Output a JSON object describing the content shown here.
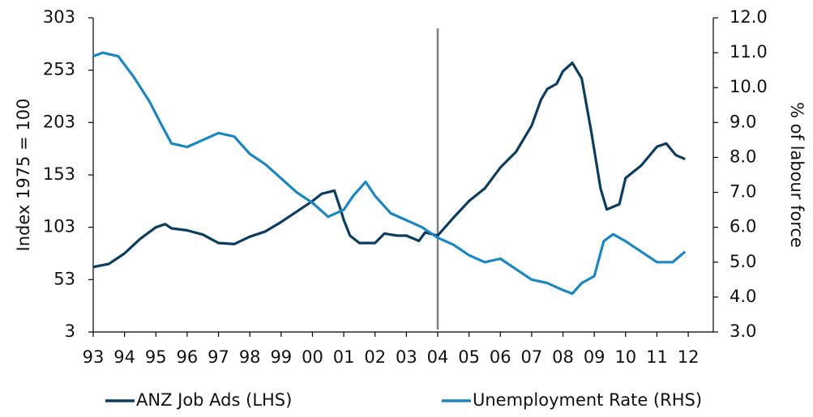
{
  "chart_data": {
    "type": "line",
    "ylabel": "Index 1975 = 100",
    "y2label": "% of labour force",
    "xlim": [
      1993,
      2012.8
    ],
    "xticks": [
      {
        "value": 1993,
        "label": "93"
      },
      {
        "value": 1994,
        "label": "94"
      },
      {
        "value": 1995,
        "label": "95"
      },
      {
        "value": 1996,
        "label": "96"
      },
      {
        "value": 1997,
        "label": "97"
      },
      {
        "value": 1998,
        "label": "98"
      },
      {
        "value": 1999,
        "label": "99"
      },
      {
        "value": 2000,
        "label": "00"
      },
      {
        "value": 2001,
        "label": "01"
      },
      {
        "value": 2002,
        "label": "02"
      },
      {
        "value": 2003,
        "label": "03"
      },
      {
        "value": 2004,
        "label": "04"
      },
      {
        "value": 2005,
        "label": "05"
      },
      {
        "value": 2006,
        "label": "06"
      },
      {
        "value": 2007,
        "label": "07"
      },
      {
        "value": 2008,
        "label": "08"
      },
      {
        "value": 2009,
        "label": "09"
      },
      {
        "value": 2010,
        "label": "10"
      },
      {
        "value": 2011,
        "label": "11"
      },
      {
        "value": 2012,
        "label": "12"
      }
    ],
    "ylim": [
      3,
      303
    ],
    "yticks": [
      3,
      53,
      103,
      153,
      203,
      253,
      303
    ],
    "y2lim": [
      3,
      12
    ],
    "y2ticks": [
      {
        "value": 3,
        "label": "3.0"
      },
      {
        "value": 4,
        "label": "4.0"
      },
      {
        "value": 5,
        "label": "5.0"
      },
      {
        "value": 6,
        "label": "6.0"
      },
      {
        "value": 7,
        "label": "7.0"
      },
      {
        "value": 8,
        "label": "8.0"
      },
      {
        "value": 9,
        "label": "9.0"
      },
      {
        "value": 10,
        "label": "10.0"
      },
      {
        "value": 11,
        "label": "11.0"
      },
      {
        "value": 12,
        "label": "12.0"
      }
    ],
    "vline": 2004,
    "vline_color": "#808080",
    "legend": "bottom",
    "series": [
      {
        "name": "ANZ Job Ads (LHS)",
        "color": "#0d3d5e",
        "axis": "y",
        "x": [
          1993.0,
          1993.5,
          1994.0,
          1994.5,
          1995.0,
          1995.3,
          1995.5,
          1996.0,
          1996.5,
          1997.0,
          1997.5,
          1998.0,
          1998.5,
          1999.0,
          1999.5,
          2000.0,
          2000.3,
          2000.7,
          2000.9,
          2001.0,
          2001.2,
          2001.5,
          2002.0,
          2002.3,
          2002.7,
          2003.0,
          2003.4,
          2003.6,
          2004.0,
          2004.5,
          2005.0,
          2005.5,
          2006.0,
          2006.5,
          2007.0,
          2007.3,
          2007.5,
          2007.8,
          2008.0,
          2008.3,
          2008.6,
          2008.9,
          2009.2,
          2009.4,
          2009.8,
          2010.0,
          2010.5,
          2011.0,
          2011.3,
          2011.6,
          2011.9
        ],
        "values": [
          65,
          68,
          78,
          92,
          103,
          106,
          102,
          100,
          96,
          88,
          87,
          94,
          99,
          108,
          118,
          128,
          135,
          138,
          120,
          110,
          95,
          88,
          88,
          97,
          95,
          95,
          90,
          98,
          95,
          112,
          128,
          140,
          160,
          175,
          200,
          225,
          235,
          240,
          252,
          260,
          245,
          195,
          140,
          120,
          125,
          150,
          162,
          180,
          183,
          172,
          168
        ]
      },
      {
        "name": "Unemployment Rate (RHS)",
        "color": "#1a87c0",
        "axis": "y2",
        "x": [
          1993.0,
          1993.3,
          1993.8,
          1994.3,
          1994.8,
          1995.2,
          1995.5,
          1996.0,
          1996.5,
          1997.0,
          1997.5,
          1998.0,
          1998.5,
          1999.0,
          1999.5,
          2000.0,
          2000.5,
          2001.0,
          2001.3,
          2001.7,
          2002.0,
          2002.5,
          2003.0,
          2003.5,
          2004.0,
          2004.5,
          2005.0,
          2005.5,
          2006.0,
          2006.5,
          2007.0,
          2007.5,
          2008.0,
          2008.3,
          2008.6,
          2009.0,
          2009.3,
          2009.6,
          2010.0,
          2010.5,
          2011.0,
          2011.5,
          2011.9
        ],
        "values": [
          10.9,
          11.0,
          10.9,
          10.3,
          9.6,
          8.9,
          8.4,
          8.3,
          8.5,
          8.7,
          8.6,
          8.1,
          7.8,
          7.4,
          7.0,
          6.7,
          6.3,
          6.5,
          6.9,
          7.3,
          6.9,
          6.4,
          6.2,
          6.0,
          5.7,
          5.5,
          5.2,
          5.0,
          5.1,
          4.8,
          4.5,
          4.4,
          4.2,
          4.1,
          4.4,
          4.6,
          5.6,
          5.8,
          5.6,
          5.3,
          5.0,
          5.0,
          5.3
        ]
      }
    ]
  }
}
